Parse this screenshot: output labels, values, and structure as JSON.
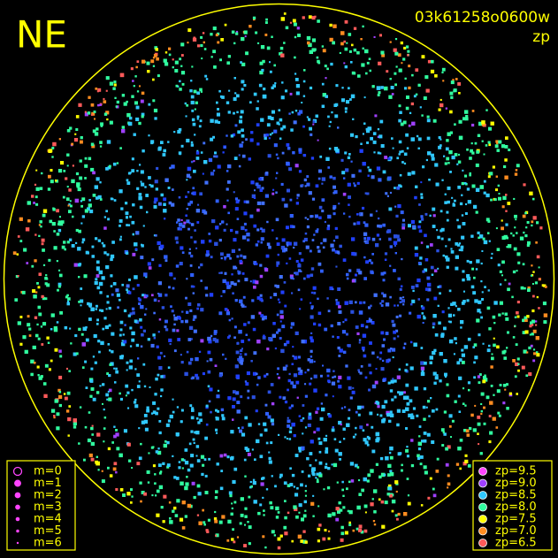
{
  "header": {
    "title": "NE",
    "frame": "03k61258o0600w",
    "mode": "zp"
  },
  "legend_magnitude": [
    "m=0",
    "m=1",
    "m=2",
    "m=3",
    "m=4",
    "m=5",
    "m=6"
  ],
  "legend_zp": [
    {
      "label": "zp=9.5",
      "color": "#ff44ff"
    },
    {
      "label": "zp=9.0",
      "color": "#a040ff"
    },
    {
      "label": "zp=8.5",
      "color": "#30c8ff"
    },
    {
      "label": "zp=8.0",
      "color": "#30ffa0"
    },
    {
      "label": "zp=7.5",
      "color": "#ffff00"
    },
    {
      "label": "zp=7.0",
      "color": "#ff8c20"
    },
    {
      "label": "zp=6.5",
      "color": "#ff5a5a"
    }
  ]
}
